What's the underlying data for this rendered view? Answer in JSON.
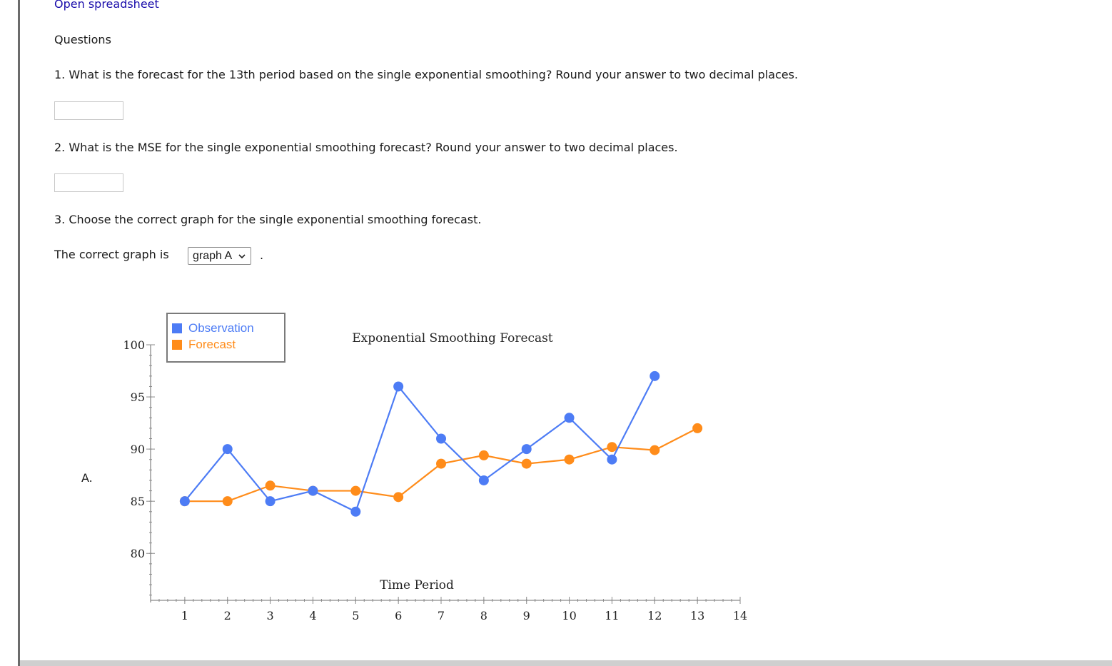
{
  "top_link": "Open spreadsheet",
  "questions_heading": "Questions",
  "q1": "1. What is the forecast for the 13th period based on the single exponential smoothing? Round your answer to two decimal places.",
  "q2": "2. What is the MSE for the single exponential smoothing forecast? Round your answer to two decimal places.",
  "q3": "3. Choose the correct graph for the single exponential smoothing forecast.",
  "graph_prompt": "The correct graph is",
  "graph_select": {
    "value": "graph A",
    "suffix": "."
  },
  "answer1": {
    "value": ""
  },
  "answer2": {
    "value": ""
  },
  "option_letter": "A.",
  "colors": {
    "observation": "#4d7cf5",
    "forecast": "#ff8c1a",
    "link": "#1a0dab"
  },
  "chart_data": {
    "type": "line",
    "title": "Exponential Smoothing Forecast",
    "xlabel": "Time Period",
    "ylabel": "",
    "xlim": [
      0.2,
      14
    ],
    "ylim": [
      75.5,
      100
    ],
    "xticks": [
      1,
      2,
      3,
      4,
      5,
      6,
      7,
      8,
      9,
      10,
      11,
      12,
      13,
      14
    ],
    "yticks": [
      80,
      85,
      90,
      95,
      100
    ],
    "legend": {
      "placement": "top-left",
      "entries": [
        "Observation",
        "Forecast"
      ]
    },
    "series": [
      {
        "name": "Observation",
        "color": "#4d7cf5",
        "x": [
          1,
          2,
          3,
          4,
          5,
          6,
          7,
          8,
          9,
          10,
          11,
          12
        ],
        "values": [
          85,
          90,
          85,
          86,
          84,
          96,
          91,
          87,
          90,
          93,
          89,
          97
        ]
      },
      {
        "name": "Forecast",
        "color": "#ff8c1a",
        "x": [
          1,
          2,
          3,
          4,
          5,
          6,
          7,
          8,
          9,
          10,
          11,
          12,
          13
        ],
        "values": [
          85,
          85,
          86.5,
          86,
          86,
          85.4,
          88.6,
          89.4,
          88.6,
          89.0,
          90.2,
          89.9,
          92.0
        ]
      }
    ]
  }
}
